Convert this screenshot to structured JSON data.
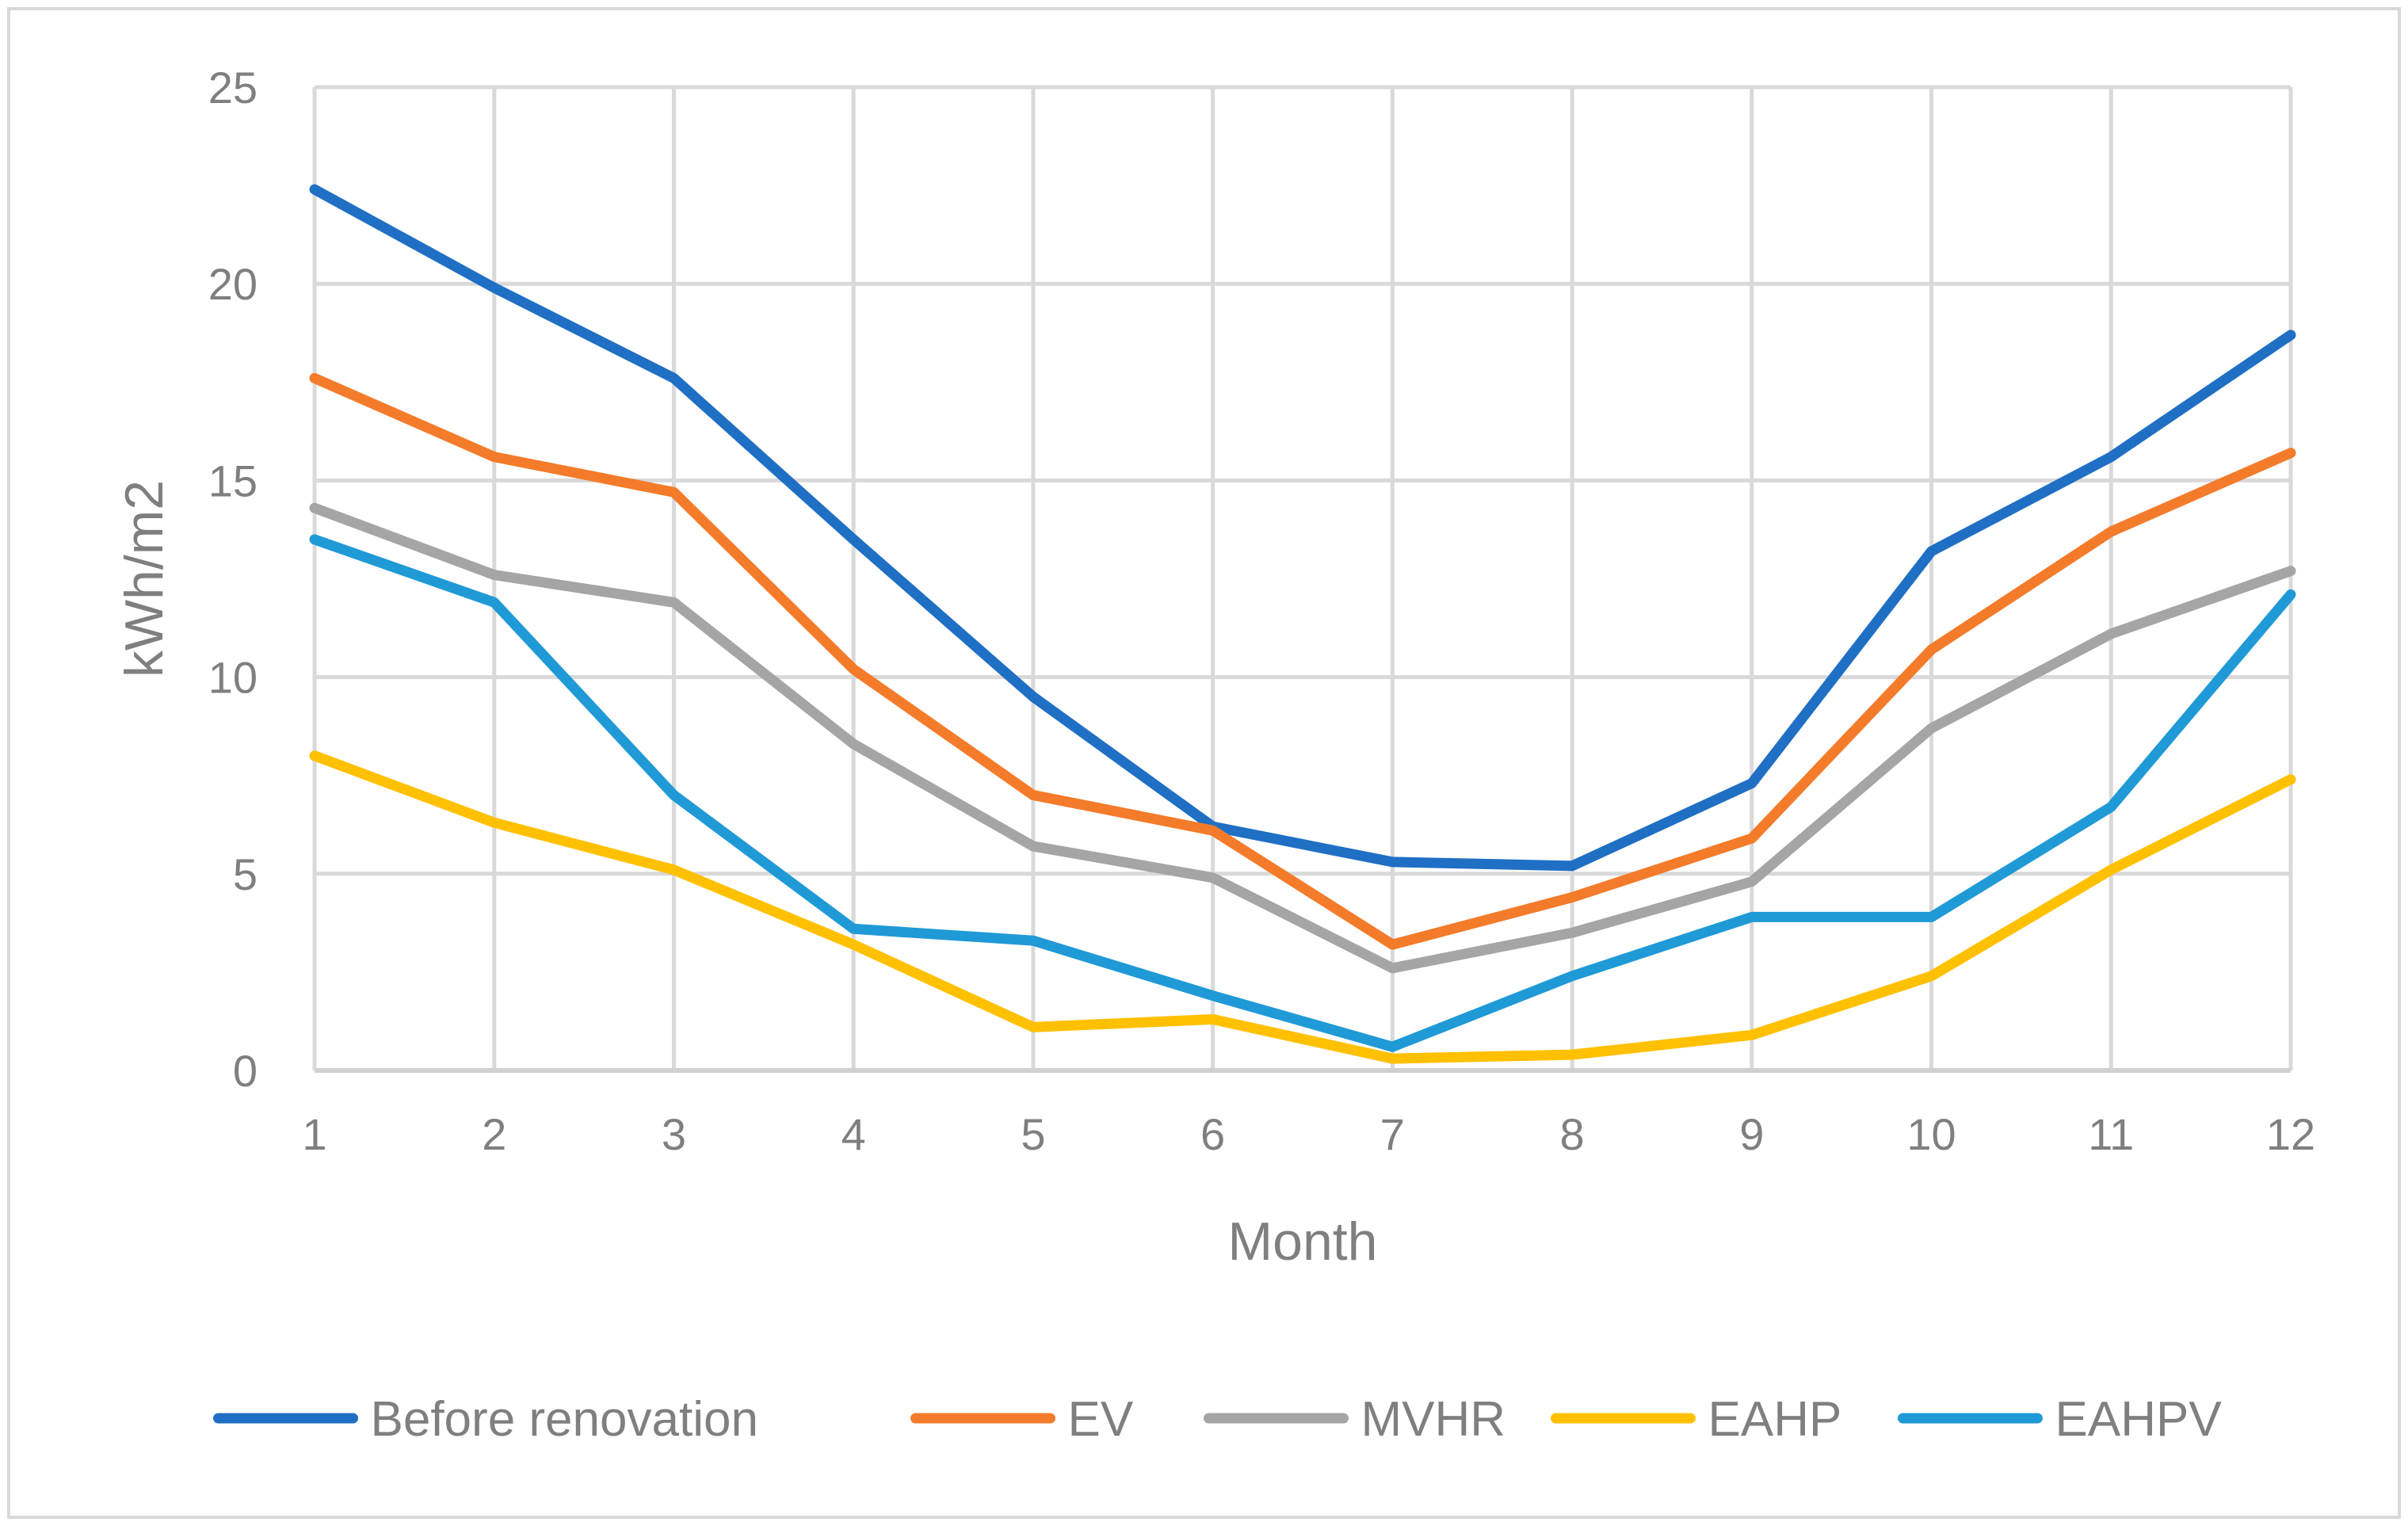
{
  "chart_data": {
    "type": "line",
    "title": "",
    "xlabel": "Month",
    "ylabel": "kWh/m2",
    "x": [
      1,
      2,
      3,
      4,
      5,
      6,
      7,
      8,
      9,
      10,
      11,
      12
    ],
    "ylim": [
      0,
      25
    ],
    "yticks": [
      0,
      5,
      10,
      15,
      20,
      25
    ],
    "grid": true,
    "legend_position": "bottom",
    "series": [
      {
        "name": "Before renovation",
        "color": "#1f6fc4",
        "values": [
          22.4,
          19.9,
          17.6,
          13.5,
          9.5,
          6.2,
          5.3,
          5.2,
          7.3,
          13.2,
          15.6,
          18.7
        ]
      },
      {
        "name": "EV",
        "color": "#f47b2a",
        "values": [
          17.6,
          15.6,
          14.7,
          10.2,
          7.0,
          6.1,
          3.2,
          4.4,
          5.9,
          10.7,
          13.7,
          15.7
        ]
      },
      {
        "name": "MVHR",
        "color": "#a5a5a5",
        "values": [
          14.3,
          12.6,
          11.9,
          8.3,
          5.7,
          4.9,
          2.6,
          3.5,
          4.8,
          8.7,
          11.1,
          12.7
        ]
      },
      {
        "name": "EAHP",
        "color": "#ffc000",
        "values": [
          8.0,
          6.3,
          5.1,
          3.2,
          1.1,
          1.3,
          0.3,
          0.4,
          0.9,
          2.4,
          5.1,
          7.4
        ]
      },
      {
        "name": "EAHPV",
        "color": "#1f9ad6",
        "values": [
          13.5,
          11.9,
          7.0,
          3.6,
          3.3,
          1.9,
          0.6,
          2.4,
          3.9,
          3.9,
          6.7,
          12.1
        ]
      }
    ]
  }
}
